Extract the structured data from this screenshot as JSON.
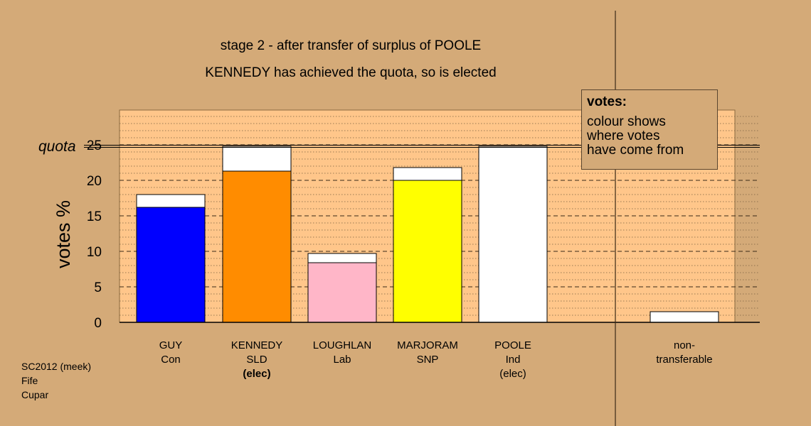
{
  "title": "stage 2 - after transfer of surplus of POOLE",
  "subtitle": "KENNEDY has achieved the quota, so is elected",
  "legend": {
    "title": "votes:",
    "lines": [
      "colour shows",
      "where votes",
      "have come from"
    ]
  },
  "footer": [
    "SC2012 (meek)",
    "Fife",
    "Cupar"
  ],
  "colors": {
    "background": "#d4aa78",
    "plot_area": "#ffc68a",
    "con": "#0000ff",
    "sld": "#ff8c00",
    "lab": "#ffb6c8",
    "snp": "#ffff00",
    "transfer": "#ffffff"
  },
  "chart_data": {
    "type": "bar",
    "stacked": true,
    "ylabel": "votes %",
    "yticks": [
      0,
      5,
      10,
      15,
      20,
      25
    ],
    "ylim": [
      0,
      25
    ],
    "quota": 24.8,
    "quota_label": "quota",
    "grid": true,
    "candidates": [
      {
        "name": "GUY",
        "party": "Con",
        "note": "",
        "note_bold": false,
        "base": 16.2,
        "transfer": 1.8,
        "color": "#0000ff"
      },
      {
        "name": "KENNEDY",
        "party": "SLD",
        "note": "(elec)",
        "note_bold": true,
        "base": 21.3,
        "transfer": 3.5,
        "color": "#ff8c00"
      },
      {
        "name": "LOUGHLAN",
        "party": "Lab",
        "note": "",
        "note_bold": false,
        "base": 8.4,
        "transfer": 1.3,
        "color": "#ffb6c8"
      },
      {
        "name": "MARJORAM",
        "party": "SNP",
        "note": "",
        "note_bold": false,
        "base": 20.0,
        "transfer": 1.8,
        "color": "#ffff00"
      },
      {
        "name": "POOLE",
        "party": "Ind",
        "note": "(elec)",
        "note_bold": false,
        "base": 0,
        "transfer": 24.8,
        "color": "#ffffff"
      }
    ],
    "nontransferable": {
      "label_line1": "non-",
      "label_line2": "transferable",
      "value": 1.5
    }
  }
}
